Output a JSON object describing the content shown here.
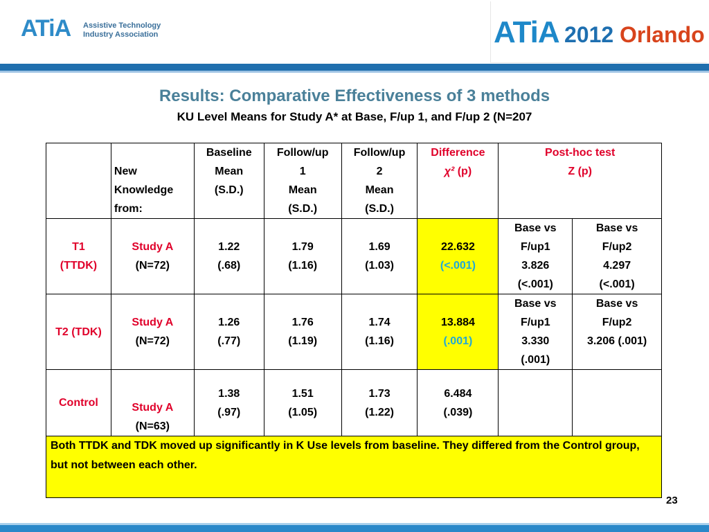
{
  "header": {
    "left_logo_mark": "ATiA",
    "left_logo_line1": "Assistive Technology",
    "left_logo_line2": "Industry Association",
    "right_logo_mark": "ATiA",
    "right_logo_year": "2012",
    "right_logo_city": "Orlando"
  },
  "title": "Results: Comparative Effectiveness of 3 methods",
  "subtitle": "KU Level Means for Study A* at Base, F/up 1, and F/up 2 (N=207",
  "table": {
    "head": {
      "col2": [
        "New",
        "Knowledge",
        "from:"
      ],
      "baseline": [
        "Baseline",
        "Mean",
        "(S.D.)"
      ],
      "follow1": [
        "Follow/up",
        "1",
        "Mean",
        "(S.D.)"
      ],
      "follow2": [
        "Follow/up",
        "2",
        "Mean",
        "(S.D.)"
      ],
      "difference": [
        "Difference",
        "χ²",
        "(p)"
      ],
      "posthoc": [
        "Post-hoc test",
        "Z (p)"
      ]
    },
    "rows": [
      {
        "group": [
          "T1",
          "(TTDK)"
        ],
        "source": [
          "Study A",
          "(N=72)"
        ],
        "baseline": [
          "1.22",
          "(.68)"
        ],
        "follow1": [
          "1.79",
          "(1.16)"
        ],
        "follow2": [
          "1.69",
          "(1.03)"
        ],
        "difference": [
          "22.632",
          "(<.001)"
        ],
        "posthoc1": [
          "Base vs",
          "F/up1",
          "3.826",
          "(<.001)"
        ],
        "posthoc2": [
          "Base vs",
          "F/up2",
          "4.297",
          "(<.001)"
        ]
      },
      {
        "group": [
          "T2 (TDK)"
        ],
        "source": [
          "Study A",
          "(N=72)"
        ],
        "baseline": [
          "1.26",
          "(.77)"
        ],
        "follow1": [
          "1.76",
          "(1.19)"
        ],
        "follow2": [
          "1.74",
          "(1.16)"
        ],
        "difference": [
          "13.884",
          "(.001)"
        ],
        "posthoc1": [
          "Base vs",
          "F/up1",
          "3.330",
          "(.001)"
        ],
        "posthoc2": [
          "Base vs",
          "F/up2",
          "3.206 (.001)"
        ]
      },
      {
        "group": [
          "Control"
        ],
        "source": [
          "Study A",
          "(N=63)"
        ],
        "baseline": [
          "1.38",
          "(.97)"
        ],
        "follow1": [
          "1.51",
          "(1.05)"
        ],
        "follow2": [
          "1.73",
          "(1.22)"
        ],
        "difference": [
          "6.484",
          "(.039)"
        ],
        "posthoc1": [],
        "posthoc2": []
      }
    ],
    "note": "Both TTDK and TDK moved up significantly in K Use levels from baseline. They differed from the Control group, but not between each other."
  },
  "page_number": "23",
  "colors": {
    "title": "#4a8099",
    "header_bar": "#1f6fae",
    "highlight": "#ffff00",
    "difference_header": "#e0002a",
    "p_value": "#21a8d8"
  }
}
